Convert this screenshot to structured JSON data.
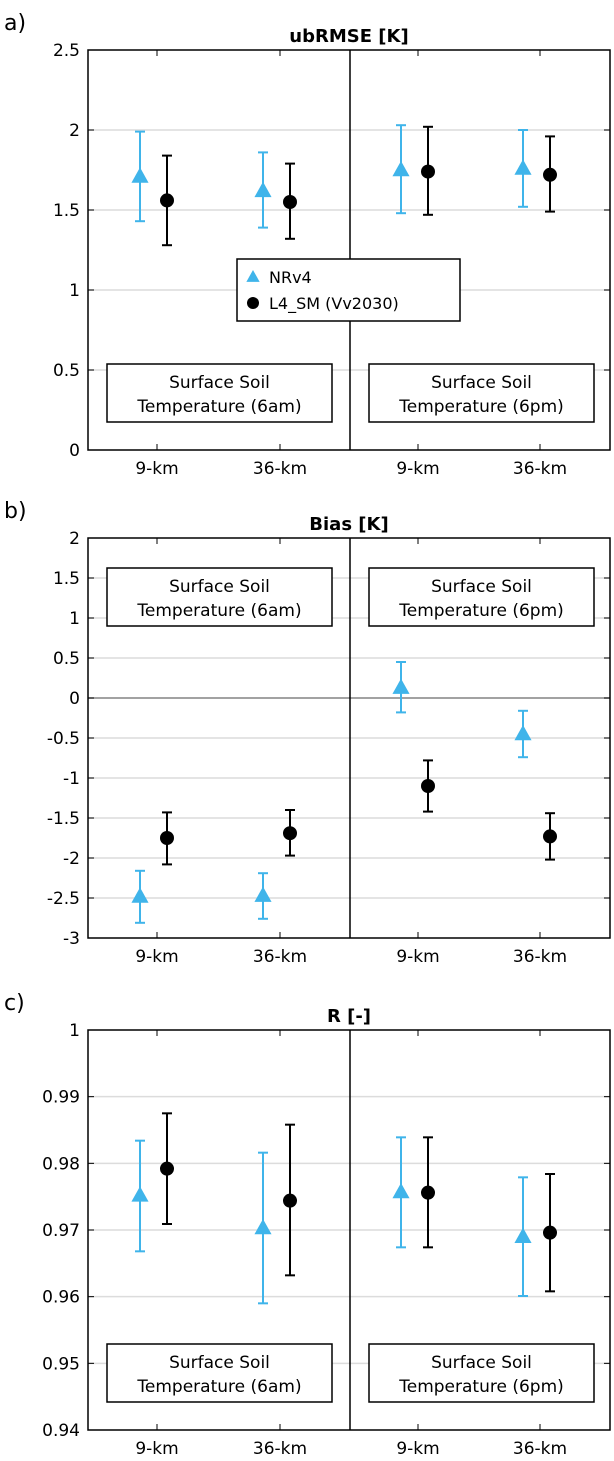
{
  "chart_data": [
    {
      "type": "errorbar",
      "panel_label": "a)",
      "title": "ubRMSE [K]",
      "ylim": [
        0,
        2.5
      ],
      "yticks": [
        0,
        0.5,
        1,
        1.5,
        2,
        2.5
      ],
      "ytick_labels": [
        "0",
        "0.5",
        "1",
        "1.5",
        "2",
        "2.5"
      ],
      "grid": true,
      "categories": [
        "9-km",
        "36-km",
        "9-km",
        "36-km"
      ],
      "series": [
        {
          "name": "NRv4",
          "color": "#3fb4ea",
          "marker": "triangle",
          "values": [
            1.71,
            1.62,
            1.75,
            1.76
          ],
          "lower": [
            1.43,
            1.39,
            1.48,
            1.52
          ],
          "upper": [
            1.99,
            1.86,
            2.03,
            2.0
          ]
        },
        {
          "name": "L4_SM (Vv2030)",
          "color": "#000000",
          "marker": "circle",
          "values": [
            1.56,
            1.55,
            1.74,
            1.72
          ],
          "lower": [
            1.28,
            1.32,
            1.47,
            1.49
          ],
          "upper": [
            1.84,
            1.79,
            2.02,
            1.96
          ]
        }
      ],
      "legend": {
        "placement": "center",
        "entries": [
          "NRv4",
          "L4_SM (Vv2030)"
        ]
      },
      "boxes": [
        {
          "line1": "Surface Soil",
          "line2": "Temperature (6am)"
        },
        {
          "line1": "Surface Soil",
          "line2": "Temperature (6pm)"
        }
      ],
      "box_placement": "bottom"
    },
    {
      "type": "errorbar",
      "panel_label": "b)",
      "title": "Bias [K]",
      "ylim": [
        -3,
        2
      ],
      "yticks": [
        -3,
        -2.5,
        -2,
        -1.5,
        -1,
        -0.5,
        0,
        0.5,
        1,
        1.5,
        2
      ],
      "ytick_labels": [
        "-3",
        "-2.5",
        "-2",
        "-1.5",
        "-1",
        "-0.5",
        "0",
        "0.5",
        "1",
        "1.5",
        "2"
      ],
      "grid": true,
      "zero_line": true,
      "categories": [
        "9-km",
        "36-km",
        "9-km",
        "36-km"
      ],
      "series": [
        {
          "name": "NRv4",
          "color": "#3fb4ea",
          "marker": "triangle",
          "values": [
            -2.48,
            -2.47,
            0.13,
            -0.45
          ],
          "lower": [
            -2.81,
            -2.76,
            -0.18,
            -0.74
          ],
          "upper": [
            -2.16,
            -2.19,
            0.45,
            -0.16
          ]
        },
        {
          "name": "L4_SM (Vv2030)",
          "color": "#000000",
          "marker": "circle",
          "values": [
            -1.75,
            -1.69,
            -1.1,
            -1.73
          ],
          "lower": [
            -2.08,
            -1.97,
            -1.42,
            -2.02
          ],
          "upper": [
            -1.43,
            -1.4,
            -0.78,
            -1.44
          ]
        }
      ],
      "boxes": [
        {
          "line1": "Surface Soil",
          "line2": "Temperature (6am)"
        },
        {
          "line1": "Surface Soil",
          "line2": "Temperature (6pm)"
        }
      ],
      "box_placement": "top"
    },
    {
      "type": "errorbar",
      "panel_label": "c)",
      "title": "R [-]",
      "ylim": [
        0.94,
        1
      ],
      "yticks": [
        0.94,
        0.95,
        0.96,
        0.97,
        0.98,
        0.99,
        1
      ],
      "ytick_labels": [
        "0.94",
        "0.95",
        "0.96",
        "0.97",
        "0.98",
        "0.99",
        "1"
      ],
      "grid": true,
      "categories": [
        "9-km",
        "36-km",
        "9-km",
        "36-km"
      ],
      "series": [
        {
          "name": "NRv4",
          "color": "#3fb4ea",
          "marker": "triangle",
          "values": [
            0.9752,
            0.9703,
            0.9757,
            0.969
          ],
          "lower": [
            0.9668,
            0.959,
            0.9674,
            0.9601
          ],
          "upper": [
            0.9834,
            0.9816,
            0.9839,
            0.9779
          ]
        },
        {
          "name": "L4_SM (Vv2030)",
          "color": "#000000",
          "marker": "circle",
          "values": [
            0.9792,
            0.9744,
            0.9756,
            0.9696
          ],
          "lower": [
            0.9709,
            0.9632,
            0.9674,
            0.9608
          ],
          "upper": [
            0.9875,
            0.9858,
            0.9839,
            0.9784
          ]
        }
      ],
      "boxes": [
        {
          "line1": "Surface Soil",
          "line2": "Temperature (6am)"
        },
        {
          "line1": "Surface Soil",
          "line2": "Temperature (6pm)"
        }
      ],
      "box_placement": "bottom"
    }
  ]
}
